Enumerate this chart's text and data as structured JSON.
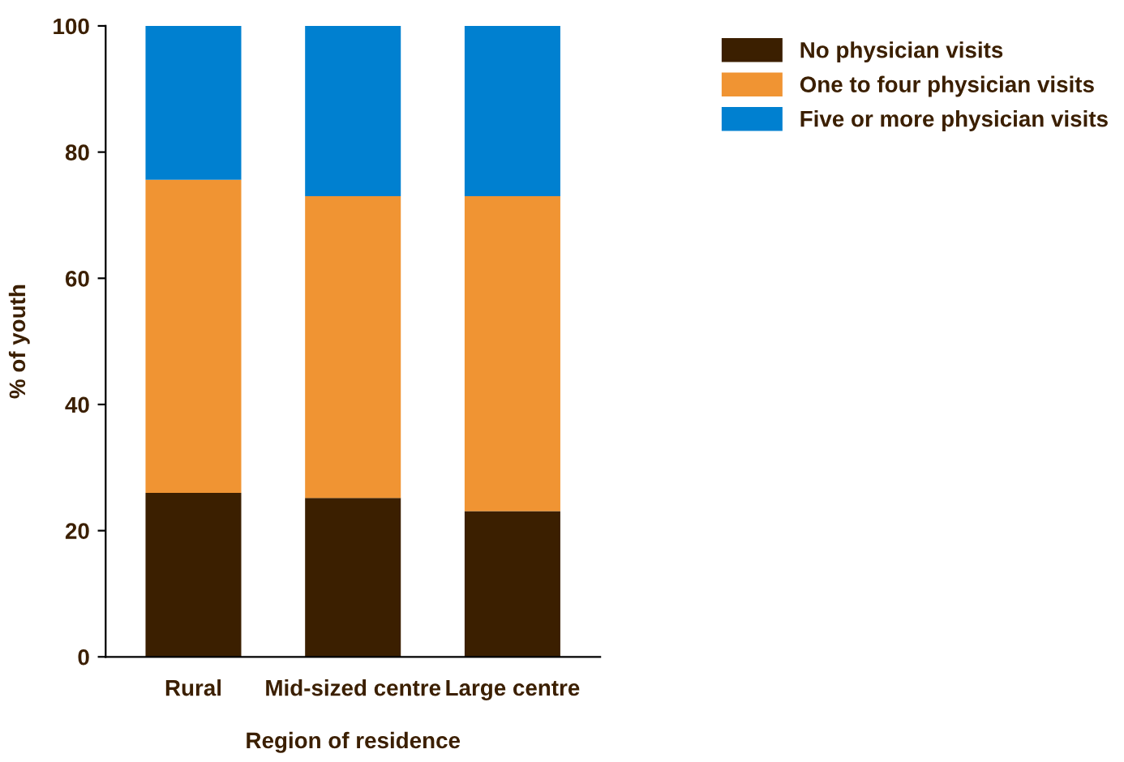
{
  "chart_data": {
    "type": "bar",
    "stacked": true,
    "xlabel": "Region of residence",
    "ylabel": "% of youth",
    "categories": [
      "Rural",
      "Mid-sized centre",
      "Large centre"
    ],
    "series": [
      {
        "name": "No physician visits",
        "color": "#3b1f00",
        "values": [
          26.0,
          25.2,
          23.1
        ]
      },
      {
        "name": "One to four physician visits",
        "color": "#f09433",
        "values": [
          49.6,
          47.8,
          49.9
        ]
      },
      {
        "name": "Five or more physician visits",
        "color": "#0080d0",
        "values": [
          24.4,
          27.0,
          27.0
        ]
      }
    ],
    "ylim": [
      0,
      100
    ],
    "yticks": [
      0,
      20,
      40,
      60,
      80,
      100
    ],
    "grid": false,
    "legend": "top right"
  }
}
